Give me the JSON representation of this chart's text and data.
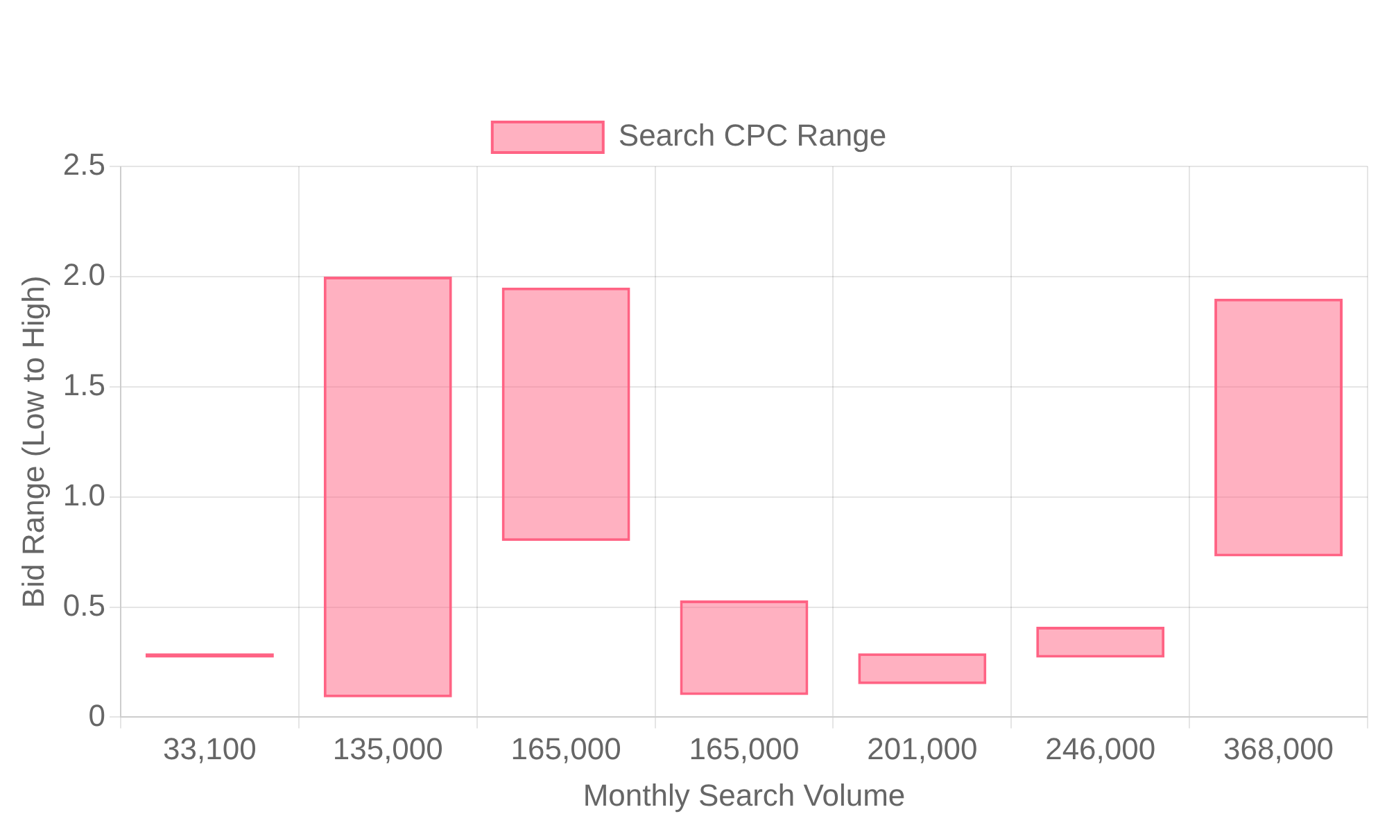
{
  "chart_data": {
    "type": "bar",
    "xlabel": "Monthly Search Volume",
    "ylabel": "Bid Range (Low to High)",
    "categories": [
      "33,100",
      "135,000",
      "165,000",
      "165,000",
      "201,000",
      "246,000",
      "368,000"
    ],
    "series": [
      {
        "name": "Search CPC Range",
        "color": "#ff6384",
        "values": [
          0.02,
          1.91,
          1.15,
          0.43,
          0.14,
          0.14,
          1.17
        ],
        "base": [
          0.27,
          0.09,
          0.8,
          0.1,
          0.15,
          0.27,
          0.73
        ]
      }
    ],
    "ylim": [
      0,
      2.5
    ],
    "yticks": [
      0,
      {
        "value": 0.5,
        "label": "0.5"
      },
      {
        "value": 1,
        "label": "1.0"
      },
      {
        "value": 1.5,
        "label": "1.5"
      },
      {
        "value": 2,
        "label": "2.0"
      },
      {
        "value": 2.5,
        "label": "2.5"
      }
    ],
    "grid": true,
    "legend": "top"
  }
}
